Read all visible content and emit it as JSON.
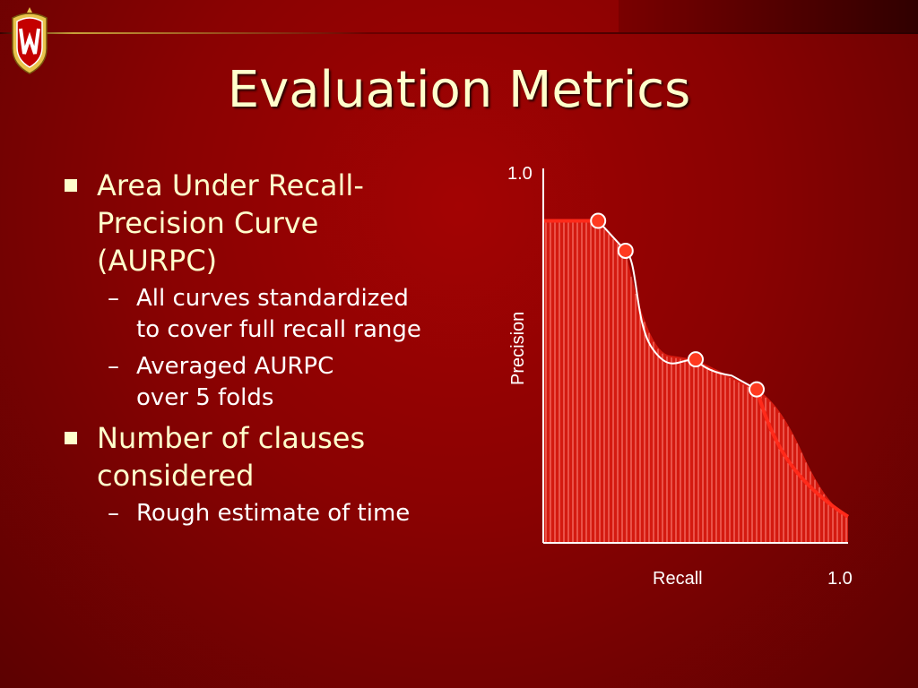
{
  "slide": {
    "title": "Evaluation Metrics"
  },
  "bullets": [
    {
      "text_lines": [
        "Area Under Recall-",
        "Precision Curve",
        "(AURPC)"
      ],
      "sub": [
        {
          "text_lines": [
            "All curves standardized",
            "to cover full recall range"
          ]
        },
        {
          "text_lines": [
            "Averaged AURPC",
            "over 5 folds"
          ]
        }
      ]
    },
    {
      "text_lines": [
        "Number of clauses",
        "considered"
      ],
      "sub": [
        {
          "text_lines": [
            "Rough estimate of time"
          ]
        }
      ]
    }
  ],
  "icons": {
    "crest": "university-crest-logo",
    "bullet": "square-bullet-icon",
    "dash": "–"
  },
  "colors": {
    "background": "#8a0202",
    "title": "#ffffcc",
    "bullet_text": "#ffffcc",
    "sub_text": "#ffffff",
    "curve": "#ff2a1a",
    "point_fill": "#ff3a20",
    "point_stroke": "#ffffff",
    "interpolated_curve": "#ffffff"
  },
  "chart_data": {
    "type": "area",
    "xlabel": "Recall",
    "ylabel": "Precision",
    "x_tick_label": "1.0",
    "y_tick_label": "1.0",
    "xlim": [
      0,
      1
    ],
    "ylim": [
      0,
      1
    ],
    "points": [
      {
        "x": 0.18,
        "y": 0.86
      },
      {
        "x": 0.27,
        "y": 0.78
      },
      {
        "x": 0.5,
        "y": 0.49
      },
      {
        "x": 0.7,
        "y": 0.41
      }
    ],
    "leading_segment": {
      "x": [
        0.0,
        0.18
      ],
      "y": [
        0.86,
        0.86
      ]
    },
    "trailing_segment": {
      "x": [
        0.7,
        1.0
      ],
      "y": [
        0.41,
        0.07
      ]
    },
    "fill": "vertical hatching under curve"
  }
}
